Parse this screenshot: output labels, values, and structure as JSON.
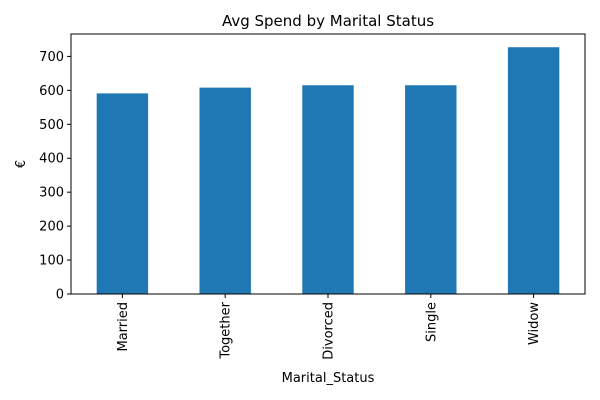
{
  "chart_data": {
    "type": "bar",
    "title": "Avg Spend by Marital Status",
    "xlabel": "Marital_Status",
    "ylabel": "€",
    "categories": [
      "Married",
      "Together",
      "Divorced",
      "Single",
      "Widow"
    ],
    "values": [
      591,
      608,
      615,
      615,
      727
    ],
    "ylim": [
      0,
      766
    ],
    "yticks": [
      0,
      100,
      200,
      300,
      400,
      500,
      600,
      700
    ],
    "grid": false,
    "bar_color": "#1f77b4"
  }
}
